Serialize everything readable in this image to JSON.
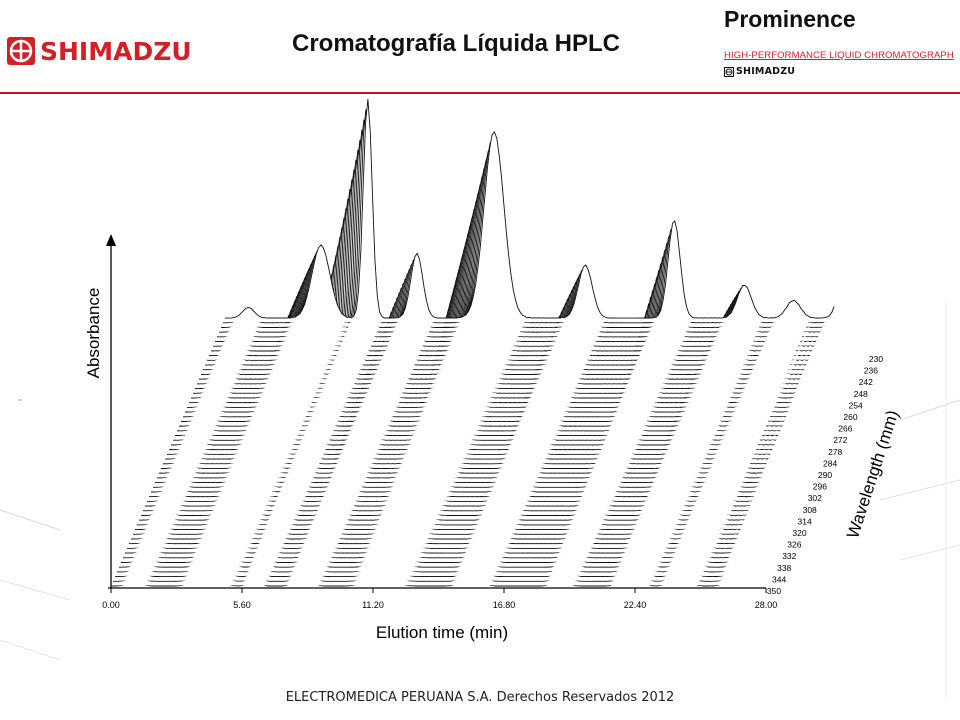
{
  "header": {
    "brand": "SHIMADZU",
    "title": "Cromatografía Líquida HPLC",
    "product": "Prominence",
    "product_subtitle": "HIGH-PERFORMANCE LIQUID CHROMATOGRAPH",
    "product_brand": "SHIMADZU",
    "accent_color": "#d32027"
  },
  "footer": {
    "text": "ELECTROMEDICA PERUANA S.A.   Derechos Reservados   2012"
  },
  "chart_data": {
    "type": "line",
    "title": "",
    "xlabel": "Elution time (min)",
    "ylabel": "Absorbance",
    "zlabel": "Wavelength (mm)",
    "xlim": [
      0,
      28
    ],
    "x_ticks": [
      "0.00",
      "5.60",
      "11.20",
      "16.80",
      "22.40",
      "28.00"
    ],
    "wavelength_ticks": [
      "230",
      "236",
      "242",
      "248",
      "254",
      "260",
      "266",
      "272",
      "278",
      "284",
      "290",
      "296",
      "302",
      "308",
      "314",
      "320",
      "326",
      "332",
      "338",
      "344",
      "350"
    ],
    "wavelengths": [
      230,
      350
    ],
    "peaks": [
      {
        "rt": 4.1,
        "fwhm": 0.9
      },
      {
        "rt": 6.1,
        "fwhm": 0.45
      },
      {
        "rt": 8.2,
        "fwhm": 0.6
      },
      {
        "rt": 11.5,
        "fwhm": 1.0
      },
      {
        "rt": 15.4,
        "fwhm": 0.7
      },
      {
        "rt": 19.2,
        "fwhm": 0.6
      },
      {
        "rt": 22.2,
        "fwhm": 0.7
      },
      {
        "rt": 24.3,
        "fwhm": 0.7
      },
      {
        "rt": 26.8,
        "fwhm": 0.8
      }
    ],
    "line_color": "#111111",
    "grid": false,
    "legend": "none"
  }
}
